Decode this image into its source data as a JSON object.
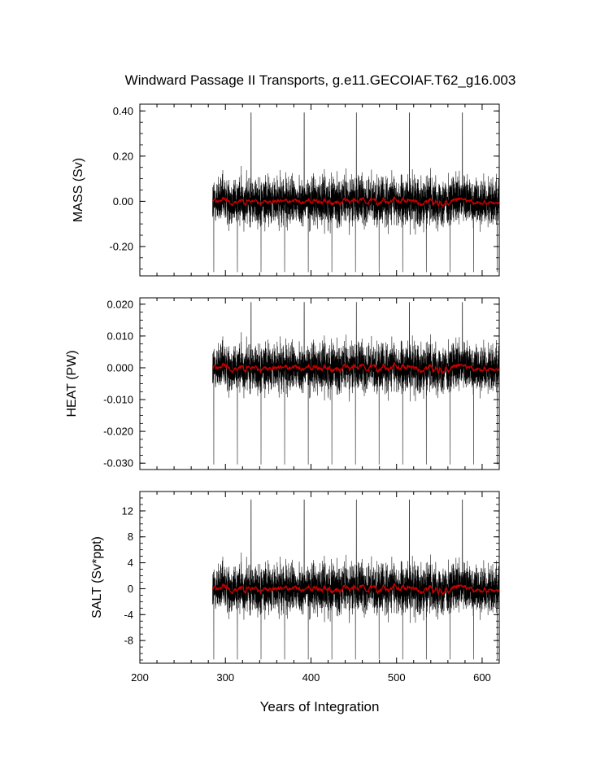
{
  "figure": {
    "title": "Windward Passage II Transports, g.e11.GECOIAF.T62_g16.003",
    "xlabel": "Years of Integration"
  },
  "colors": {
    "raw": "#000000",
    "smoothed": "#cc0000",
    "frame": "#000000"
  },
  "chart_data": [
    {
      "type": "line",
      "panel": "mass",
      "ylabel": "MASS (Sv)",
      "xlim": [
        200,
        620
      ],
      "ylim": [
        -0.33,
        0.43
      ],
      "xticks": [
        200,
        300,
        400,
        500,
        600
      ],
      "yticks": [
        0.4,
        0.2,
        0.0,
        -0.2
      ],
      "ytick_labels": [
        "0.40",
        "0.20",
        "0.00",
        "-0.20"
      ],
      "grid": false,
      "series": [
        {
          "role": "raw",
          "x_range": [
            285,
            620
          ],
          "mean": 0.0,
          "amplitude": 0.07,
          "min": -0.33,
          "max": 0.4
        },
        {
          "role": "smoothed",
          "x_range": [
            285,
            620
          ],
          "mean": 0.0,
          "amplitude": 0.025
        }
      ]
    },
    {
      "type": "line",
      "panel": "heat",
      "ylabel": "HEAT (PW)",
      "xlim": [
        200,
        620
      ],
      "ylim": [
        -0.032,
        0.022
      ],
      "xticks": [
        200,
        300,
        400,
        500,
        600
      ],
      "yticks": [
        0.02,
        0.01,
        0.0,
        -0.01,
        -0.02,
        -0.03
      ],
      "ytick_labels": [
        "0.020",
        "0.010",
        "0.000",
        "-0.010",
        "-0.020",
        "-0.030"
      ],
      "grid": false,
      "series": [
        {
          "role": "raw",
          "x_range": [
            285,
            620
          ],
          "mean": 0.0,
          "amplitude": 0.005,
          "min": -0.032,
          "max": 0.021
        },
        {
          "role": "smoothed",
          "x_range": [
            285,
            620
          ],
          "mean": 0.0,
          "amplitude": 0.002
        }
      ]
    },
    {
      "type": "line",
      "panel": "salt",
      "ylabel": "SALT (Sv*ppt)",
      "xlim": [
        200,
        620
      ],
      "ylim": [
        -11.5,
        15
      ],
      "xticks": [
        200,
        300,
        400,
        500,
        600
      ],
      "yticks": [
        12,
        8,
        4,
        0,
        -4,
        -8
      ],
      "ytick_labels": [
        "12",
        "8",
        "4",
        "0",
        "-4",
        "-8"
      ],
      "grid": false,
      "series": [
        {
          "role": "raw",
          "x_range": [
            285,
            620
          ],
          "mean": 0.0,
          "amplitude": 2.5,
          "min": -11.5,
          "max": 14
        },
        {
          "role": "smoothed",
          "x_range": [
            285,
            620
          ],
          "mean": 0.0,
          "amplitude": 1.0
        }
      ]
    }
  ]
}
